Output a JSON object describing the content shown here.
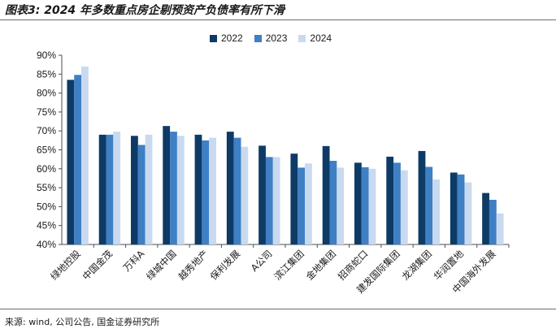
{
  "title": "图表3: 2024 年多数重点房企剔预资产负债率有所下滑",
  "source": "来源: wind, 公司公告, 国金证券研究所",
  "colors": {
    "s2022": "#0d3b66",
    "s2023": "#3f7fc4",
    "s2024": "#c9daf0"
  },
  "chart_data": {
    "type": "bar",
    "categories": [
      "绿地控股",
      "中国金茂",
      "万科A",
      "绿城中国",
      "越秀地产",
      "保利发展",
      "A公司",
      "滨江集团",
      "金地集团",
      "招商蛇口",
      "建发国际集团",
      "龙湖集团",
      "华润置地",
      "中国海外发展"
    ],
    "series": [
      {
        "name": "2022",
        "values": [
          83.5,
          69.0,
          68.7,
          71.3,
          69.0,
          69.8,
          66.1,
          64.0,
          66.0,
          61.6,
          63.2,
          64.7,
          59.0,
          53.6
        ]
      },
      {
        "name": "2023",
        "values": [
          84.8,
          69.0,
          66.3,
          69.8,
          67.5,
          68.2,
          63.1,
          60.3,
          62.1,
          60.4,
          61.6,
          60.5,
          58.5,
          51.8
        ]
      },
      {
        "name": "2024",
        "values": [
          87.0,
          69.8,
          69.0,
          68.7,
          68.2,
          65.8,
          63.1,
          61.4,
          60.3,
          60.0,
          59.6,
          57.2,
          56.4,
          48.2
        ]
      }
    ],
    "y_ticks": [
      "40%",
      "45%",
      "50%",
      "55%",
      "60%",
      "65%",
      "70%",
      "75%",
      "80%",
      "85%",
      "90%"
    ],
    "ylim": [
      40,
      90
    ],
    "legend_position": "top-center",
    "grid": false
  }
}
